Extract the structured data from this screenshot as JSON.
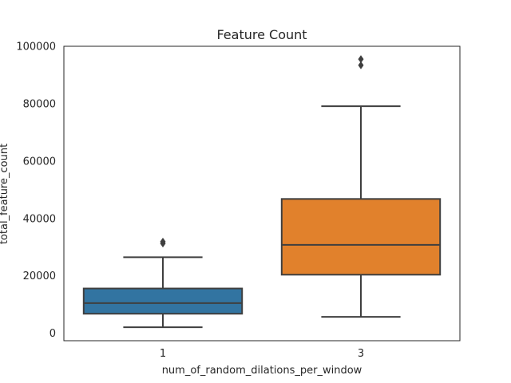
{
  "chart_data": {
    "type": "box",
    "title": "Feature Count",
    "xlabel": "num_of_random_dilations_per_window",
    "ylabel": "total_feature_count",
    "ylim": [
      -2600,
      100000
    ],
    "yticks": [
      0,
      20000,
      40000,
      60000,
      80000,
      100000
    ],
    "yticklabels": [
      "0",
      "20000",
      "40000",
      "60000",
      "80000",
      "100000"
    ],
    "grid": false,
    "categories": [
      "1",
      "3"
    ],
    "boxes": [
      {
        "category": "1",
        "color": "#3274a1",
        "whisker_low": 2100,
        "q1": 6800,
        "median": 10500,
        "q3": 15600,
        "whisker_high": 26500,
        "outliers": [
          31300,
          31900
        ]
      },
      {
        "category": "3",
        "color": "#e1812c",
        "whisker_low": 5700,
        "q1": 20400,
        "median": 30800,
        "q3": 46800,
        "whisker_high": 79100,
        "outliers": [
          93400,
          95500
        ]
      }
    ],
    "colors": {
      "line": "#3f3f3f",
      "frame": "#262626"
    }
  }
}
